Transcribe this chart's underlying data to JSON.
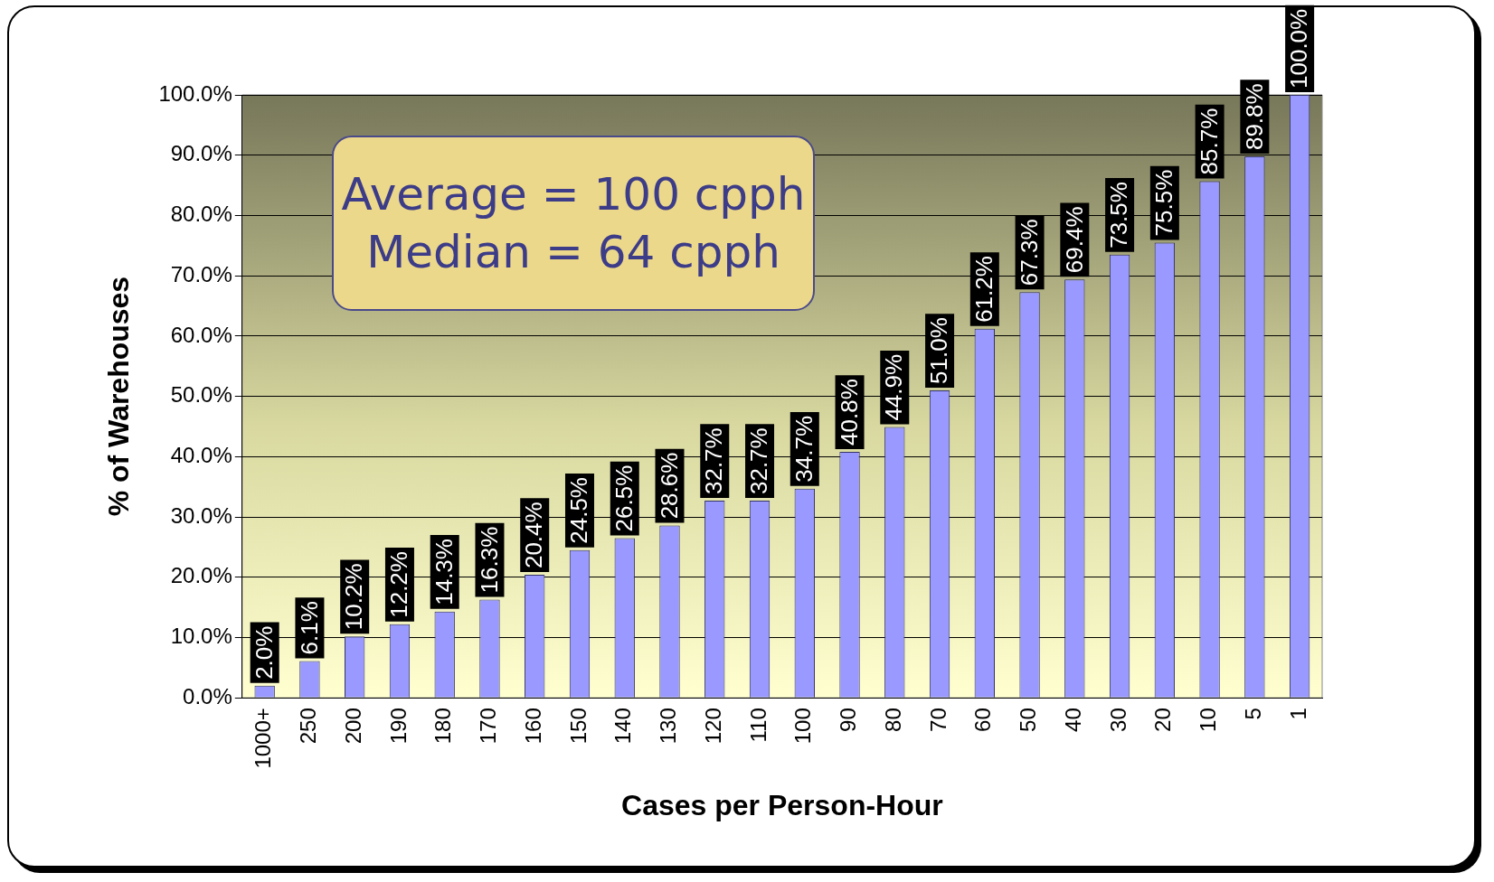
{
  "chart_data": {
    "type": "bar",
    "xlabel": "Cases per Person-Hour",
    "ylabel": "% of Warehouses",
    "categories": [
      "1000+",
      "250",
      "200",
      "190",
      "180",
      "170",
      "160",
      "150",
      "140",
      "130",
      "120",
      "110",
      "100",
      "90",
      "80",
      "70",
      "60",
      "50",
      "40",
      "30",
      "20",
      "10",
      "5",
      "1"
    ],
    "values": [
      2.0,
      6.1,
      10.2,
      12.2,
      14.3,
      16.3,
      20.4,
      24.5,
      26.5,
      28.6,
      32.7,
      32.7,
      34.7,
      40.8,
      44.9,
      51.0,
      61.2,
      67.3,
      69.4,
      73.5,
      75.5,
      85.7,
      89.8,
      100.0
    ],
    "value_labels": [
      "2.0%",
      "6.1%",
      "10.2%",
      "12.2%",
      "14.3%",
      "16.3%",
      "20.4%",
      "24.5%",
      "26.5%",
      "28.6%",
      "32.7%",
      "32.7%",
      "34.7%",
      "40.8%",
      "44.9%",
      "51.0%",
      "61.2%",
      "67.3%",
      "69.4%",
      "73.5%",
      "75.5%",
      "85.7%",
      "89.8%",
      "100.0%"
    ],
    "color": "#9999ff",
    "ylim": [
      0,
      100
    ],
    "yticks": [
      {
        "value": 0,
        "label": "0.0%"
      },
      {
        "value": 10,
        "label": "10.0%"
      },
      {
        "value": 20,
        "label": "20.0%"
      },
      {
        "value": 30,
        "label": "30.0%"
      },
      {
        "value": 40,
        "label": "40.0%"
      },
      {
        "value": 50,
        "label": "50.0%"
      },
      {
        "value": 60,
        "label": "60.0%"
      },
      {
        "value": 70,
        "label": "70.0%"
      },
      {
        "value": 80,
        "label": "80.0%"
      },
      {
        "value": 90,
        "label": "90.0%"
      },
      {
        "value": 100,
        "label": "100.0%"
      }
    ],
    "grid": "y",
    "legend": false,
    "annotations": [
      "Average = 100 cpph",
      "Median = 64 cpph"
    ]
  }
}
